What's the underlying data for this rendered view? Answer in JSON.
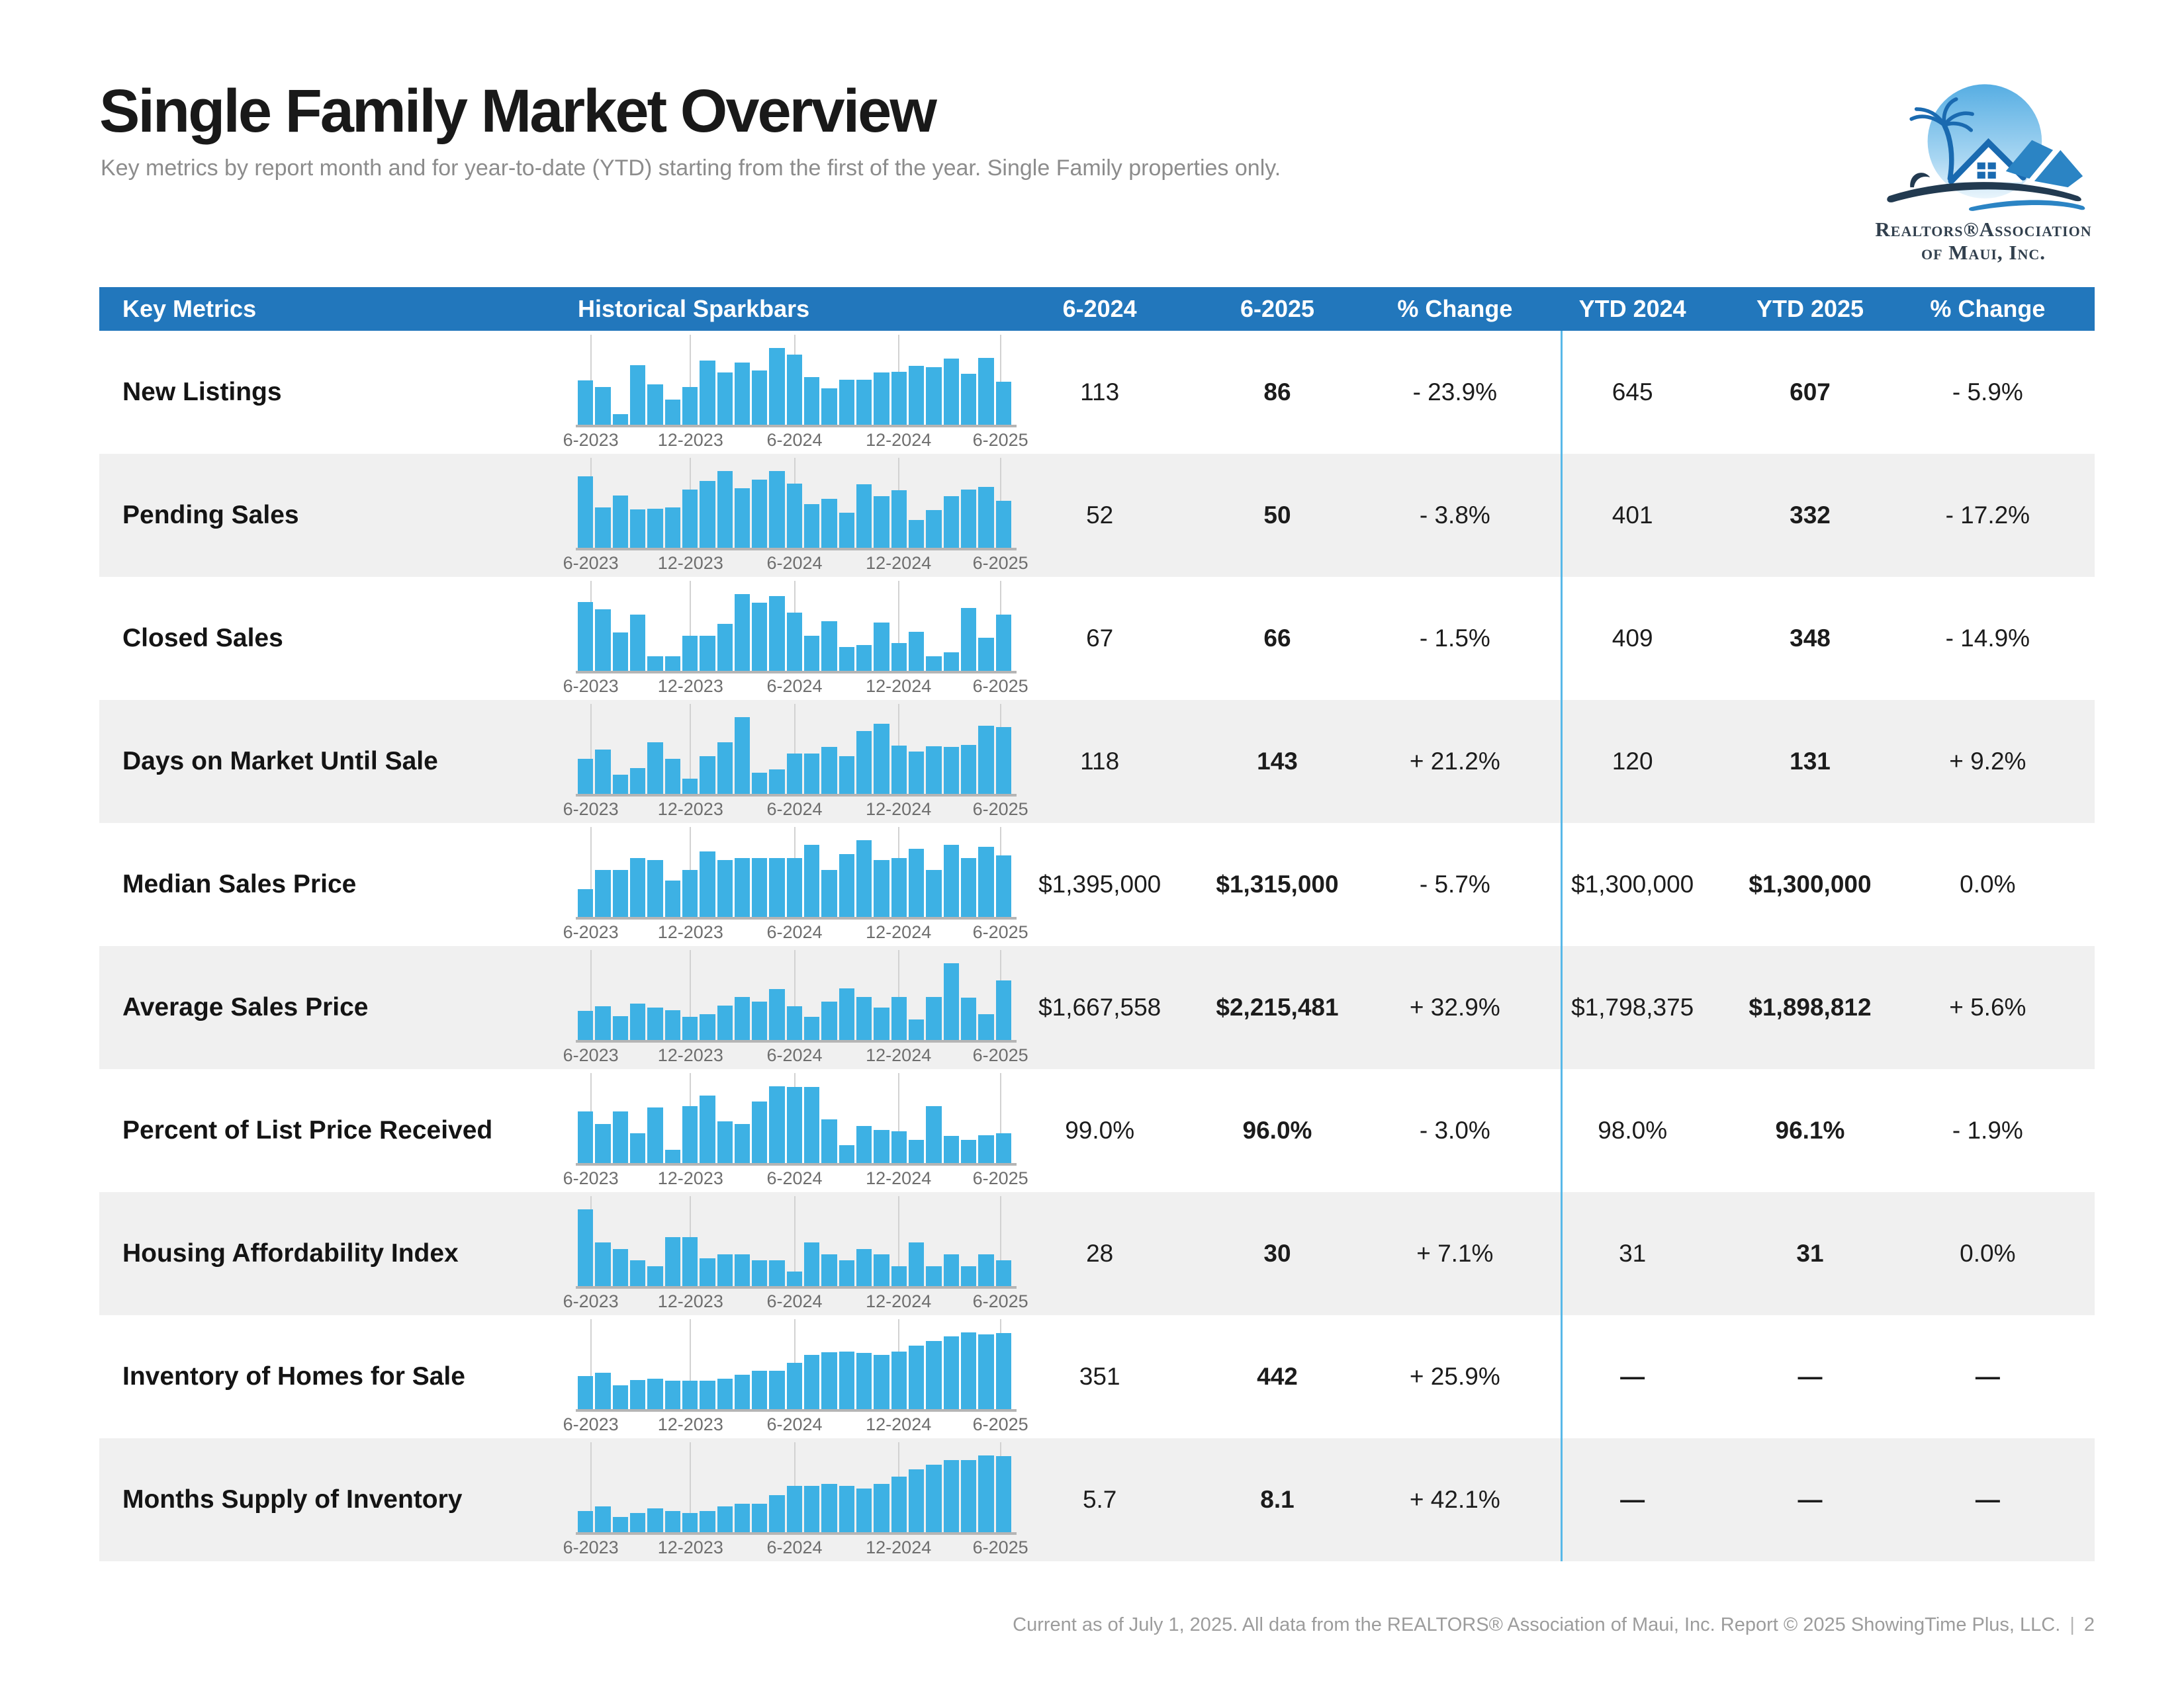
{
  "page": {
    "title": "Single Family Market Overview",
    "subtitle": "Key metrics by report month and for year-to-date (YTD) starting from the first of the year. Single Family properties only.",
    "footer": "Current as of July 1, 2025. All data from the REALTORS® Association of Maui, Inc. Report © 2025 ShowingTime Plus, LLC.",
    "footer_separator": "|",
    "page_number": "2"
  },
  "logo": {
    "line1": "Realtors®Association",
    "line2": "of Maui, Inc."
  },
  "colors": {
    "header_bg": "#2277bc",
    "bar_blue": "#3db1e4",
    "row_alt_bg": "#f0f0f0",
    "ytd_divider": "#58b8e8",
    "baseline_gray": "#b5b5b5",
    "gridline_gray": "#d2d2d2",
    "tick_gray": "#6e6e6e",
    "subtitle_gray": "#8c8c8c",
    "footer_gray": "#9c9c9c"
  },
  "table": {
    "headers": [
      "Key Metrics",
      "Historical Sparkbars",
      "6-2024",
      "6-2025",
      "% Change",
      "YTD 2024",
      "YTD 2025",
      "% Change"
    ],
    "axis_labels": [
      "6-2023",
      "12-2023",
      "6-2024",
      "12-2024",
      "6-2025"
    ],
    "rows": [
      {
        "label": "New Listings",
        "spark": [
          0.58,
          0.49,
          0.14,
          0.78,
          0.53,
          0.33,
          0.49,
          0.84,
          0.68,
          0.81,
          0.71,
          1.0,
          0.91,
          0.62,
          0.47,
          0.59,
          0.59,
          0.68,
          0.69,
          0.77,
          0.75,
          0.86,
          0.66,
          0.87,
          0.56
        ],
        "values": [
          "113",
          "86",
          "- 23.9%",
          "645",
          "607",
          "- 5.9%"
        ]
      },
      {
        "label": "Pending Sales",
        "spark": [
          0.93,
          0.53,
          0.68,
          0.5,
          0.51,
          0.53,
          0.76,
          0.87,
          1.0,
          0.78,
          0.89,
          1.0,
          0.84,
          0.57,
          0.64,
          0.46,
          0.83,
          0.67,
          0.75,
          0.36,
          0.49,
          0.67,
          0.76,
          0.79,
          0.61
        ],
        "values": [
          "52",
          "50",
          "- 3.8%",
          "401",
          "332",
          "- 17.2%"
        ]
      },
      {
        "label": "Closed Sales",
        "spark": [
          0.9,
          0.8,
          0.5,
          0.73,
          0.19,
          0.19,
          0.46,
          0.46,
          0.61,
          1.0,
          0.89,
          0.97,
          0.76,
          0.46,
          0.65,
          0.31,
          0.34,
          0.63,
          0.36,
          0.51,
          0.19,
          0.24,
          0.82,
          0.43,
          0.73
        ],
        "values": [
          "67",
          "66",
          "- 1.5%",
          "409",
          "348",
          "- 14.9%"
        ]
      },
      {
        "label": "Days on Market Until Sale",
        "spark": [
          0.46,
          0.58,
          0.25,
          0.34,
          0.67,
          0.46,
          0.2,
          0.49,
          0.67,
          1.0,
          0.28,
          0.32,
          0.53,
          0.53,
          0.61,
          0.49,
          0.82,
          0.91,
          0.63,
          0.55,
          0.62,
          0.61,
          0.64,
          0.89,
          0.87
        ],
        "values": [
          "118",
          "143",
          "+ 21.2%",
          "120",
          "131",
          "+ 9.2%"
        ]
      },
      {
        "label": "Median Sales Price",
        "spark": [
          0.36,
          0.61,
          0.61,
          0.77,
          0.74,
          0.47,
          0.61,
          0.85,
          0.74,
          0.77,
          0.77,
          0.77,
          0.77,
          0.94,
          0.61,
          0.82,
          1.0,
          0.74,
          0.77,
          0.89,
          0.61,
          0.94,
          0.77,
          0.91,
          0.8
        ],
        "values": [
          "$1,395,000",
          "$1,315,000",
          "- 5.7%",
          "$1,300,000",
          "$1,300,000",
          "0.0%"
        ]
      },
      {
        "label": "Average Sales Price",
        "spark": [
          0.38,
          0.44,
          0.31,
          0.47,
          0.42,
          0.39,
          0.3,
          0.34,
          0.45,
          0.56,
          0.5,
          0.66,
          0.44,
          0.3,
          0.5,
          0.67,
          0.56,
          0.42,
          0.56,
          0.27,
          0.56,
          1.0,
          0.55,
          0.34,
          0.78
        ],
        "values": [
          "$1,667,558",
          "$2,215,481",
          "+ 32.9%",
          "$1,798,375",
          "$1,898,812",
          "+ 5.6%"
        ]
      },
      {
        "label": "Percent of List Price Received",
        "spark": [
          0.67,
          0.51,
          0.67,
          0.39,
          0.72,
          0.17,
          0.74,
          0.88,
          0.54,
          0.51,
          0.8,
          1.0,
          0.99,
          0.99,
          0.57,
          0.23,
          0.48,
          0.43,
          0.41,
          0.3,
          0.74,
          0.35,
          0.3,
          0.36,
          0.39
        ],
        "values": [
          "99.0%",
          "96.0%",
          "- 3.0%",
          "98.0%",
          "96.1%",
          "- 1.9%"
        ]
      },
      {
        "label": "Housing Affordability Index",
        "spark": [
          1.0,
          0.57,
          0.48,
          0.34,
          0.26,
          0.64,
          0.64,
          0.36,
          0.41,
          0.41,
          0.34,
          0.34,
          0.19,
          0.57,
          0.41,
          0.34,
          0.48,
          0.41,
          0.26,
          0.57,
          0.26,
          0.41,
          0.26,
          0.41,
          0.34
        ],
        "values": [
          "28",
          "30",
          "+ 7.1%",
          "31",
          "31",
          "0.0%"
        ]
      },
      {
        "label": "Inventory of Homes for Sale",
        "spark": [
          0.43,
          0.47,
          0.31,
          0.38,
          0.4,
          0.37,
          0.37,
          0.37,
          0.4,
          0.45,
          0.5,
          0.5,
          0.6,
          0.71,
          0.74,
          0.75,
          0.73,
          0.71,
          0.75,
          0.83,
          0.89,
          0.95,
          1.0,
          0.97,
          0.99
        ],
        "values": [
          "351",
          "442",
          "+ 25.9%",
          "—",
          "—",
          "—"
        ]
      },
      {
        "label": "Months Supply of Inventory",
        "spark": [
          0.28,
          0.34,
          0.2,
          0.25,
          0.31,
          0.28,
          0.25,
          0.28,
          0.34,
          0.37,
          0.37,
          0.48,
          0.6,
          0.6,
          0.63,
          0.6,
          0.57,
          0.63,
          0.72,
          0.82,
          0.88,
          0.94,
          0.94,
          1.0,
          0.99
        ],
        "values": [
          "5.7",
          "8.1",
          "+ 42.1%",
          "—",
          "—",
          "—"
        ]
      }
    ]
  }
}
